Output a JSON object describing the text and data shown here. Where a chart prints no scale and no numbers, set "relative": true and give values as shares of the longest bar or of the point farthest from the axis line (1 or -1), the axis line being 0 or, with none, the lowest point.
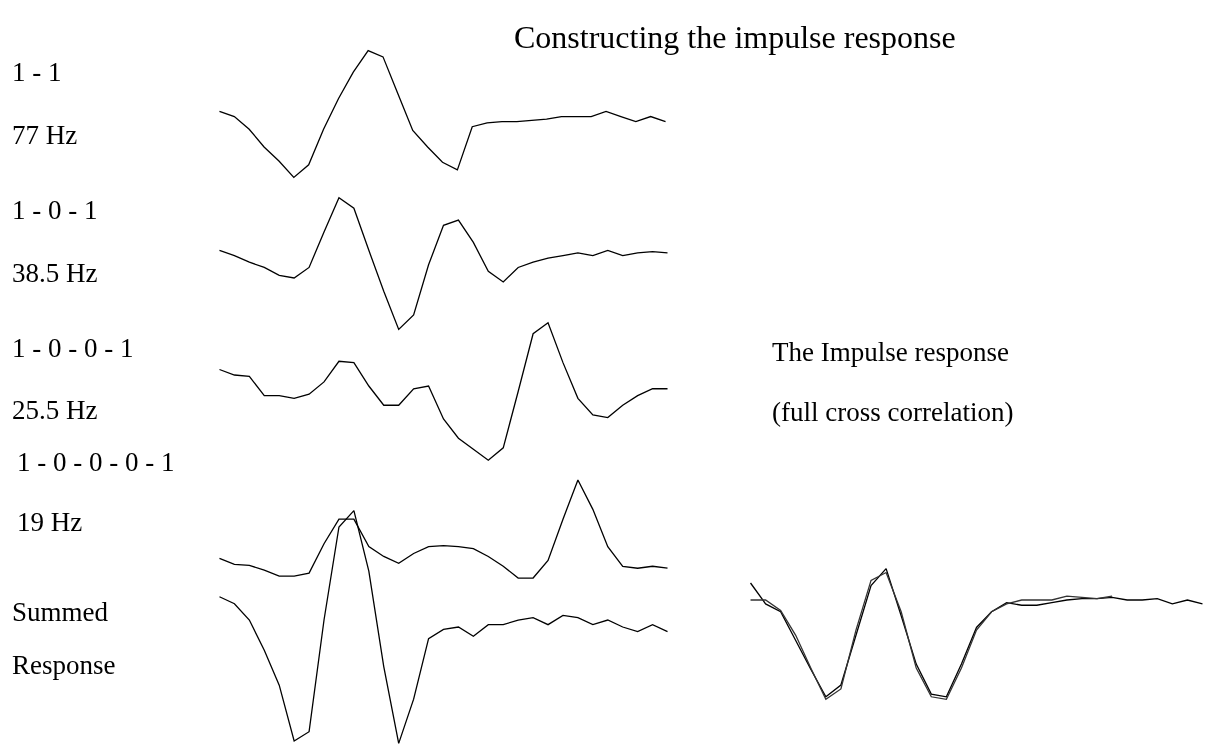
{
  "chart_data": [
    {
      "type": "line",
      "relative": true,
      "title": "Constructing the impulse response",
      "annotations": [
        "1 - 1",
        "77 Hz"
      ],
      "categories": [
        null,
        null,
        null,
        null,
        null,
        null,
        null,
        null,
        null,
        null,
        null,
        null,
        null,
        null,
        null,
        null,
        null,
        null,
        null,
        null,
        null,
        null,
        null,
        null,
        null,
        null,
        null,
        null,
        null,
        null,
        null
      ],
      "series": [
        {
          "color": "#000000",
          "values": [
            0.52,
            0.48,
            0.38,
            0.24,
            0.13,
            0,
            0.1,
            0.38,
            0.62,
            0.83,
            1,
            0.95,
            0.66,
            0.37,
            0.24,
            0.12,
            0.06,
            0.4,
            0.43,
            0.44,
            0.44,
            0.45,
            0.46,
            0.48,
            0.48,
            0.48,
            0.52,
            0.48,
            0.44,
            0.48,
            0.44
          ]
        }
      ]
    },
    {
      "type": "line",
      "relative": true,
      "annotations": [
        "1 - 0 - 1",
        "38.5 Hz"
      ],
      "categories": [
        null,
        null,
        null,
        null,
        null,
        null,
        null,
        null,
        null,
        null,
        null,
        null,
        null,
        null,
        null,
        null,
        null,
        null,
        null,
        null,
        null,
        null,
        null,
        null,
        null,
        null,
        null,
        null,
        null,
        null,
        null
      ],
      "series": [
        {
          "color": "#000000",
          "values": [
            0.6,
            0.56,
            0.51,
            0.47,
            0.41,
            0.39,
            0.47,
            0.74,
            1,
            0.92,
            0.6,
            0.29,
            0,
            0.11,
            0.49,
            0.79,
            0.83,
            0.66,
            0.44,
            0.36,
            0.47,
            0.51,
            0.54,
            0.56,
            0.58,
            0.56,
            0.6,
            0.56,
            0.58,
            0.59,
            0.58
          ]
        }
      ]
    },
    {
      "type": "line",
      "relative": true,
      "annotations": [
        "1 - 0 - 0 - 1",
        "25.5 Hz"
      ],
      "categories": [
        null,
        null,
        null,
        null,
        null,
        null,
        null,
        null,
        null,
        null,
        null,
        null,
        null,
        null,
        null,
        null,
        null,
        null,
        null,
        null,
        null,
        null,
        null,
        null,
        null,
        null,
        null,
        null,
        null,
        null,
        null
      ],
      "series": [
        {
          "color": "#000000",
          "values": [
            0.66,
            0.62,
            0.61,
            0.47,
            0.47,
            0.45,
            0.48,
            0.57,
            0.72,
            0.71,
            0.54,
            0.4,
            0.4,
            0.52,
            0.54,
            0.3,
            0.16,
            0.08,
            0,
            0.09,
            0.5,
            0.92,
            1,
            0.71,
            0.45,
            0.33,
            0.31,
            0.4,
            0.47,
            0.52,
            0.52
          ]
        }
      ]
    },
    {
      "type": "line",
      "relative": true,
      "annotations": [
        "1 - 0 - 0 - 0 - 1",
        "19 Hz"
      ],
      "categories": [
        null,
        null,
        null,
        null,
        null,
        null,
        null,
        null,
        null,
        null,
        null,
        null,
        null,
        null,
        null,
        null,
        null,
        null,
        null,
        null,
        null,
        null,
        null,
        null,
        null,
        null,
        null,
        null,
        null,
        null,
        null
      ],
      "series": [
        {
          "color": "#000000",
          "values": [
            0.2,
            0.14,
            0.13,
            0.08,
            0.02,
            0.02,
            0.05,
            0.35,
            0.6,
            0.6,
            0.32,
            0.22,
            0.15,
            0.25,
            0.32,
            0.33,
            0.32,
            0.3,
            0.22,
            0.12,
            0,
            0,
            0.18,
            0.6,
            1,
            0.7,
            0.32,
            0.12,
            0.1,
            0.12,
            0.1
          ]
        }
      ]
    },
    {
      "type": "line",
      "relative": true,
      "annotations": [
        "Summed",
        "Response"
      ],
      "categories": [
        null,
        null,
        null,
        null,
        null,
        null,
        null,
        null,
        null,
        null,
        null,
        null,
        null,
        null,
        null,
        null,
        null,
        null,
        null,
        null,
        null,
        null,
        null,
        null,
        null,
        null,
        null,
        null,
        null,
        null,
        null
      ],
      "series": [
        {
          "color": "#000000",
          "values": [
            0.63,
            0.6,
            0.53,
            0.4,
            0.25,
            0.01,
            0.05,
            0.53,
            0.93,
            1,
            0.74,
            0.33,
            0,
            0.19,
            0.45,
            0.49,
            0.5,
            0.46,
            0.51,
            0.51,
            0.53,
            0.54,
            0.51,
            0.55,
            0.54,
            0.51,
            0.53,
            0.5,
            0.48,
            0.51,
            0.48
          ]
        }
      ]
    },
    {
      "type": "line",
      "relative": true,
      "annotations": [
        "The Impulse response",
        "(full cross correlation)"
      ],
      "categories": [
        null,
        null,
        null,
        null,
        null,
        null,
        null,
        null,
        null,
        null,
        null,
        null,
        null,
        null,
        null,
        null,
        null,
        null,
        null,
        null,
        null,
        null,
        null,
        null,
        null,
        null,
        null,
        null,
        null,
        null,
        null
      ],
      "series": [
        {
          "color": "#000000",
          "values": [
            0.89,
            0.73,
            0.67,
            0.45,
            0.23,
            0.02,
            0.11,
            0.49,
            0.87,
            1,
            0.64,
            0.27,
            0.04,
            0.02,
            0.27,
            0.55,
            0.67,
            0.74,
            0.72,
            0.72,
            0.74,
            0.76,
            0.77,
            0.77,
            0.78,
            0.76,
            0.76,
            0.77,
            0.73,
            0.76,
            0.73
          ]
        },
        {
          "color": "#333333",
          "values": [
            0.76,
            0.76,
            0.68,
            0.49,
            0.24,
            0,
            0.08,
            0.53,
            0.91,
            0.97,
            0.67,
            0.24,
            0.02,
            0,
            0.24,
            0.53,
            0.67,
            0.73,
            0.76,
            0.76,
            0.76,
            0.79,
            0.78,
            0.77,
            0.79,
            null,
            null,
            null,
            null,
            null,
            null
          ]
        }
      ]
    }
  ]
}
